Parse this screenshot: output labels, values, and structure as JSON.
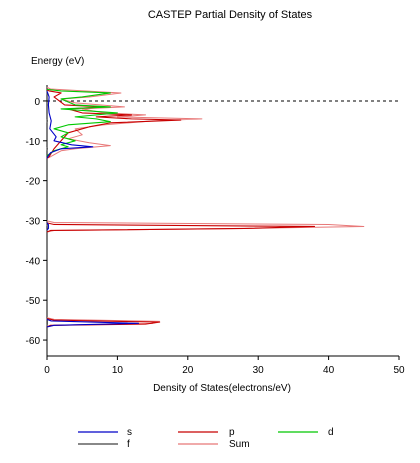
{
  "chart_data": {
    "type": "line",
    "title": "CASTEP Partial  Density of States",
    "xlabel": "Density of States(electrons/eV)",
    "ylabel": "Energy (eV)",
    "xlim": [
      0,
      50
    ],
    "ylim": [
      -64,
      4
    ],
    "xticks": [
      0,
      10,
      20,
      30,
      40,
      50
    ],
    "yticks": [
      0,
      -10,
      -20,
      -30,
      -40,
      -50,
      -60
    ],
    "orientation": "energy on vertical axis, DOS on horizontal axis",
    "fermi_level": 0,
    "legend_position": "bottom",
    "series": [
      {
        "name": "s",
        "color": "#0000c8",
        "points": [
          [
            0.1,
            2.0
          ],
          [
            0.3,
            1.0
          ],
          [
            0.2,
            -1.0
          ],
          [
            0.3,
            -3.0
          ],
          [
            0.6,
            -5.0
          ],
          [
            0.4,
            -7.0
          ],
          [
            1.3,
            -9.0
          ],
          [
            1.0,
            -10.0
          ],
          [
            3.5,
            -11.0
          ],
          [
            6.5,
            -11.5
          ],
          [
            2.0,
            -12.0
          ],
          [
            0.5,
            -13.0
          ],
          [
            0.1,
            -14.0
          ],
          [
            0.2,
            -31.0
          ],
          [
            0.2,
            -32.0
          ],
          [
            0.6,
            -55.2
          ],
          [
            13.0,
            -55.8
          ],
          [
            1.0,
            -56.3
          ]
        ]
      },
      {
        "name": "p",
        "color": "#c80000",
        "points": [
          [
            0.3,
            2.5
          ],
          [
            2.0,
            2.0
          ],
          [
            1.0,
            1.0
          ],
          [
            2.5,
            -1.0
          ],
          [
            8.0,
            -1.5
          ],
          [
            3.0,
            -2.0
          ],
          [
            5.0,
            -3.0
          ],
          [
            12.0,
            -3.5
          ],
          [
            7.0,
            -4.0
          ],
          [
            12.0,
            -4.5
          ],
          [
            19.0,
            -4.8
          ],
          [
            9.0,
            -5.5
          ],
          [
            6.0,
            -6.5
          ],
          [
            3.0,
            -8.0
          ],
          [
            2.0,
            -10.0
          ],
          [
            1.0,
            -12.0
          ],
          [
            0.3,
            -14.0
          ],
          [
            1.0,
            -31.0
          ],
          [
            38.0,
            -31.5
          ],
          [
            28.0,
            -32.0
          ],
          [
            0.5,
            -32.5
          ],
          [
            1.0,
            -55.0
          ],
          [
            16.0,
            -55.5
          ],
          [
            14.0,
            -56.0
          ],
          [
            0.5,
            -56.3
          ]
        ]
      },
      {
        "name": "d",
        "color": "#00c800",
        "points": [
          [
            2.0,
            2.5
          ],
          [
            9.0,
            2.0
          ],
          [
            5.0,
            1.0
          ],
          [
            2.0,
            0.5
          ],
          [
            4.0,
            -1.0
          ],
          [
            9.0,
            -1.5
          ],
          [
            2.0,
            -2.0
          ],
          [
            10.0,
            -3.0
          ],
          [
            4.0,
            -4.0
          ],
          [
            7.0,
            -4.5
          ],
          [
            9.0,
            -5.2
          ],
          [
            3.0,
            -6.0
          ],
          [
            1.0,
            -7.0
          ],
          [
            3.0,
            -8.0
          ],
          [
            2.0,
            -9.0
          ],
          [
            4.0,
            -10.0
          ],
          [
            2.0,
            -11.0
          ],
          [
            3.0,
            -11.5
          ],
          [
            1.0,
            -12.5
          ],
          [
            0.2,
            -13.5
          ]
        ]
      },
      {
        "name": "f",
        "color": "#404040",
        "points": [
          [
            0.05,
            2.0
          ],
          [
            0.05,
            -5.0
          ],
          [
            0.05,
            -12.0
          ],
          [
            0.05,
            -31.0
          ],
          [
            0.05,
            -55.0
          ],
          [
            0.05,
            -56.0
          ]
        ]
      },
      {
        "name": "Sum",
        "color": "#e87878",
        "points": [
          [
            0.5,
            3.0
          ],
          [
            10.5,
            2.0
          ],
          [
            6.0,
            1.0
          ],
          [
            2.0,
            0.5
          ],
          [
            4.0,
            -0.5
          ],
          [
            11.0,
            -1.5
          ],
          [
            5.0,
            -2.0
          ],
          [
            8.0,
            -3.0
          ],
          [
            14.0,
            -3.5
          ],
          [
            10.0,
            -4.0
          ],
          [
            22.0,
            -4.5
          ],
          [
            15.0,
            -5.0
          ],
          [
            8.0,
            -6.0
          ],
          [
            4.0,
            -7.0
          ],
          [
            5.0,
            -8.5
          ],
          [
            3.0,
            -9.5
          ],
          [
            6.0,
            -10.5
          ],
          [
            9.0,
            -11.2
          ],
          [
            4.0,
            -12.0
          ],
          [
            2.0,
            -12.5
          ],
          [
            0.5,
            -14.0
          ],
          [
            1.0,
            -30.5
          ],
          [
            40.0,
            -31.0
          ],
          [
            45.0,
            -31.5
          ],
          [
            28.0,
            -32.0
          ],
          [
            1.0,
            -32.5
          ],
          [
            1.0,
            -54.8
          ],
          [
            16.0,
            -55.3
          ],
          [
            15.0,
            -55.8
          ],
          [
            1.0,
            -56.3
          ]
        ]
      }
    ]
  }
}
